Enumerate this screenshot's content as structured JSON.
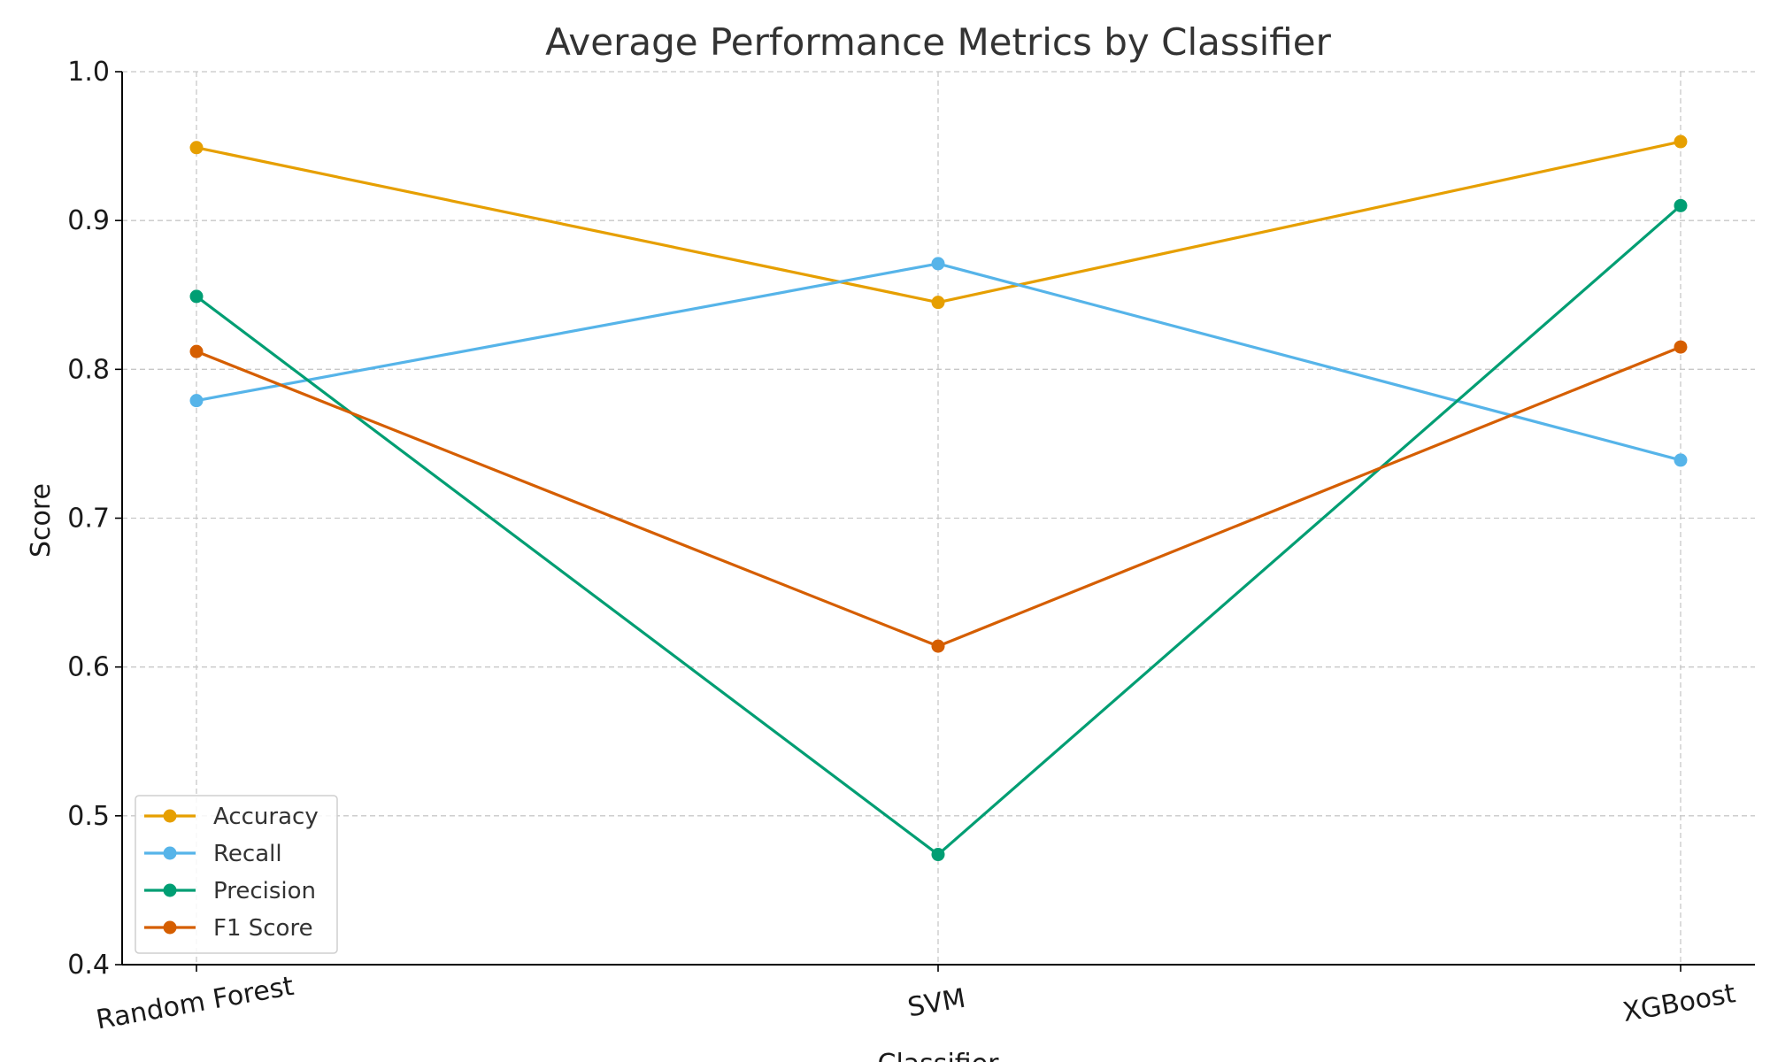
{
  "chart_data": {
    "type": "line",
    "title": "Average Performance Metrics by Classifier",
    "xlabel": "Classifier",
    "ylabel": "Score",
    "categories": [
      "Random Forest",
      "SVM",
      "XGBoost"
    ],
    "ylim": [
      0.4,
      1.0
    ],
    "yticks": [
      "0.4",
      "0.5",
      "0.6",
      "0.7",
      "0.8",
      "0.9",
      "1.0"
    ],
    "grid": true,
    "legend_position": "lower-left",
    "series": [
      {
        "name": "Accuracy",
        "color": "#E69F00",
        "values": [
          0.949,
          0.845,
          0.953
        ]
      },
      {
        "name": "Recall",
        "color": "#56B4E9",
        "values": [
          0.779,
          0.871,
          0.739
        ]
      },
      {
        "name": "Precision",
        "color": "#009E73",
        "values": [
          0.849,
          0.474,
          0.91
        ]
      },
      {
        "name": "F1 Score",
        "color": "#D55E00",
        "values": [
          0.812,
          0.614,
          0.815
        ]
      }
    ]
  }
}
